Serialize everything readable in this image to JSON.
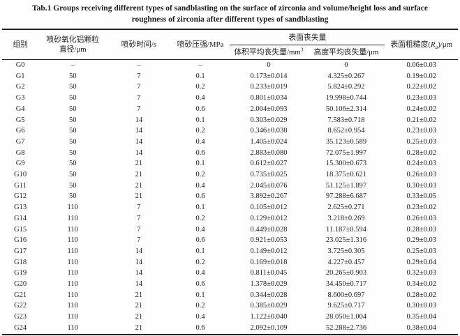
{
  "title": {
    "line1": "Tab.1 Groups receiving different types of sandblasting on the surface of zirconia and volume/height loss and surface",
    "line2": "roughness of zirconia after different types of sandblasting"
  },
  "table": {
    "header": {
      "group": "组别",
      "particle_line1": "喷砂氧化铝颗粒",
      "particle_line2": "直径/μm",
      "time": "喷砂时间/s",
      "pressure": "喷砂压强/MPa",
      "surface_loss_group": "表面丧失量",
      "volume_loss_prefix": "体积平均丧失量/mm",
      "volume_loss_sup": "3",
      "height_loss": "高度平均丧失量/μm",
      "roughness_prefix": "表面粗糙度(",
      "roughness_symbol": "R",
      "roughness_sub": "a",
      "roughness_suffix": ")/μm"
    },
    "row_keys": [
      "group",
      "diameter",
      "time",
      "pressure",
      "volume_loss",
      "height_loss",
      "roughness"
    ],
    "rows": [
      {
        "group": "G0",
        "diameter": "–",
        "time": "–",
        "pressure": "–",
        "volume_loss": "0",
        "height_loss": "0",
        "roughness": "0.06±0.03"
      },
      {
        "group": "G1",
        "diameter": "50",
        "time": "7",
        "pressure": "0.1",
        "volume_loss": "0.173±0.014",
        "height_loss": "4.325±0.267",
        "roughness": "0.19±0.02"
      },
      {
        "group": "G2",
        "diameter": "50",
        "time": "7",
        "pressure": "0.2",
        "volume_loss": "0.233±0.019",
        "height_loss": "5.824±0.292",
        "roughness": "0.22±0.02"
      },
      {
        "group": "G3",
        "diameter": "50",
        "time": "7",
        "pressure": "0.4",
        "volume_loss": "0.801±0.034",
        "height_loss": "19.998±0.744",
        "roughness": "0.23±0.03"
      },
      {
        "group": "G4",
        "diameter": "50",
        "time": "7",
        "pressure": "0.6",
        "volume_loss": "2.004±0.093",
        "height_loss": "50.106±2.314",
        "roughness": "0.24±0.02"
      },
      {
        "group": "G5",
        "diameter": "50",
        "time": "14",
        "pressure": "0.1",
        "volume_loss": "0.303±0.029",
        "height_loss": "7.583±0.718",
        "roughness": "0.21±0.02"
      },
      {
        "group": "G6",
        "diameter": "50",
        "time": "14",
        "pressure": "0.2",
        "volume_loss": "0.346±0.038",
        "height_loss": "8.652±0.954",
        "roughness": "0.23±0.03"
      },
      {
        "group": "G7",
        "diameter": "50",
        "time": "14",
        "pressure": "0.4",
        "volume_loss": "1.405±0.024",
        "height_loss": "35.123±0.589",
        "roughness": "0.25±0.03"
      },
      {
        "group": "G8",
        "diameter": "50",
        "time": "14",
        "pressure": "0.6",
        "volume_loss": "2.883±0.080",
        "height_loss": "72.075±1.997",
        "roughness": "0.28±0.02"
      },
      {
        "group": "G9",
        "diameter": "50",
        "time": "21",
        "pressure": "0.1",
        "volume_loss": "0.612±0.027",
        "height_loss": "15.300±0.673",
        "roughness": "0.24±0.03"
      },
      {
        "group": "G10",
        "diameter": "50",
        "time": "21",
        "pressure": "0.2",
        "volume_loss": "0.735±0.025",
        "height_loss": "18.375±0.621",
        "roughness": "0.26±0.03"
      },
      {
        "group": "G11",
        "diameter": "50",
        "time": "21",
        "pressure": "0.4",
        "volume_loss": "2.045±0.076",
        "height_loss": "51.125±1.897",
        "roughness": "0.30±0.03"
      },
      {
        "group": "G12",
        "diameter": "50",
        "time": "21",
        "pressure": "0.6",
        "volume_loss": "3.892±0.267",
        "height_loss": "97.288±6.687",
        "roughness": "0.33±0.05"
      },
      {
        "group": "G13",
        "diameter": "110",
        "time": "7",
        "pressure": "0.1",
        "volume_loss": "0.105±0.012",
        "height_loss": "2.625±0.271",
        "roughness": "0.23±0.02"
      },
      {
        "group": "G14",
        "diameter": "110",
        "time": "7",
        "pressure": "0.2",
        "volume_loss": "0.129±0.012",
        "height_loss": "3.218±0.269",
        "roughness": "0.26±0.03"
      },
      {
        "group": "G15",
        "diameter": "110",
        "time": "7",
        "pressure": "0.4",
        "volume_loss": "0.449±0.028",
        "height_loss": "11.187±0.594",
        "roughness": "0.28±0.03"
      },
      {
        "group": "G16",
        "diameter": "110",
        "time": "7",
        "pressure": "0.6",
        "volume_loss": "0.921±0.053",
        "height_loss": "23.025±1.316",
        "roughness": "0.29±0.03"
      },
      {
        "group": "G17",
        "diameter": "110",
        "time": "14",
        "pressure": "0.1",
        "volume_loss": "0.149±0.012",
        "height_loss": "3.725±0.305",
        "roughness": "0.25±0.03"
      },
      {
        "group": "G18",
        "diameter": "110",
        "time": "14",
        "pressure": "0.2",
        "volume_loss": "0.169±0.018",
        "height_loss": "4.227±0.457",
        "roughness": "0.29±0.04"
      },
      {
        "group": "G19",
        "diameter": "110",
        "time": "14",
        "pressure": "0.4",
        "volume_loss": "0.811±0.045",
        "height_loss": "20.265±0.903",
        "roughness": "0.32±0.03"
      },
      {
        "group": "G20",
        "diameter": "110",
        "time": "14",
        "pressure": "0.6",
        "volume_loss": "1.378±0.029",
        "height_loss": "34.450±0.717",
        "roughness": "0.34±0.02"
      },
      {
        "group": "G21",
        "diameter": "110",
        "time": "21",
        "pressure": "0.1",
        "volume_loss": "0.344±0.028",
        "height_loss": "8.600±0.697",
        "roughness": "0.28±0.02"
      },
      {
        "group": "G22",
        "diameter": "110",
        "time": "21",
        "pressure": "0.2",
        "volume_loss": "0.385±0.029",
        "height_loss": "9.625±0.717",
        "roughness": "0.30±0.03"
      },
      {
        "group": "G23",
        "diameter": "110",
        "time": "21",
        "pressure": "0.4",
        "volume_loss": "1.122±0.040",
        "height_loss": "28.050±1.004",
        "roughness": "0.35±0.04"
      },
      {
        "group": "G24",
        "diameter": "110",
        "time": "21",
        "pressure": "0.6",
        "volume_loss": "2.092±0.109",
        "height_loss": "52.288±2.736",
        "roughness": "0.38±0.04"
      }
    ]
  }
}
